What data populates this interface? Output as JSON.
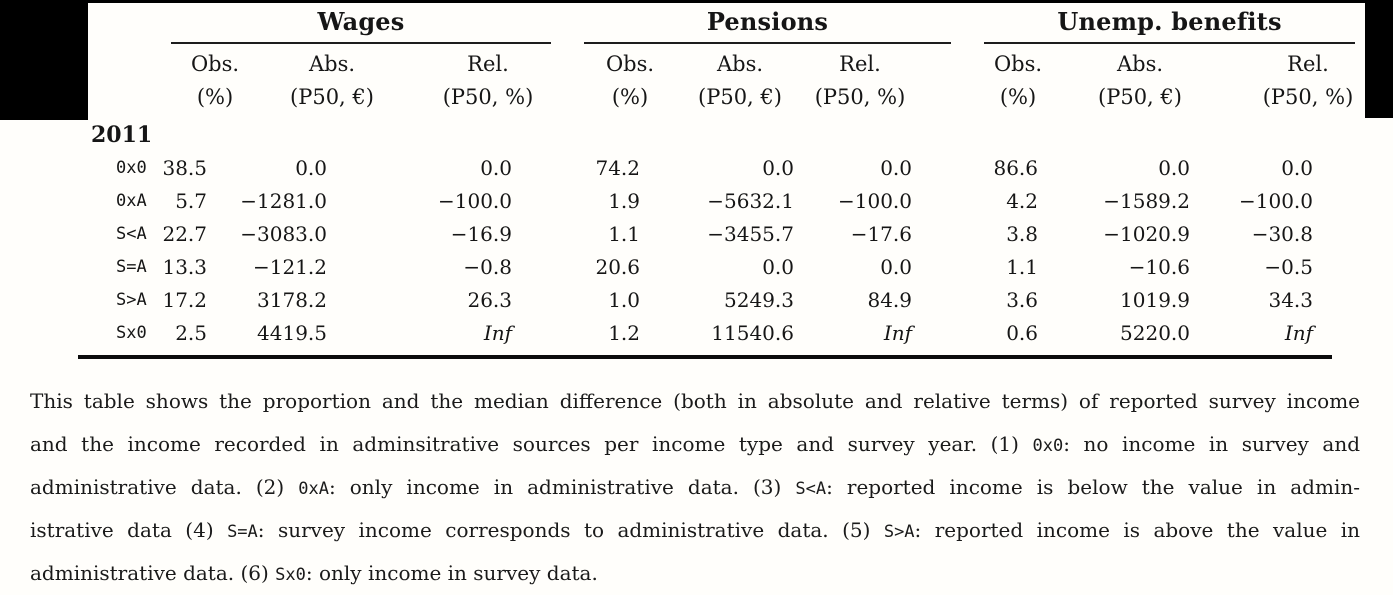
{
  "table": {
    "year_label": "2011",
    "groups": [
      {
        "label": "Wages"
      },
      {
        "label": "Pensions"
      },
      {
        "label": "Unemp. benefits"
      }
    ],
    "subheaders": [
      "Obs.",
      "Abs.",
      "Rel."
    ],
    "units": [
      "(%)",
      "(P50, €)",
      "(P50, %)"
    ],
    "rows": [
      {
        "label": "0x0",
        "wages": [
          "38.5",
          "0.0",
          "0.0"
        ],
        "pensions": [
          "74.2",
          "0.0",
          "0.0"
        ],
        "unemp": [
          "86.6",
          "0.0",
          "0.0"
        ]
      },
      {
        "label": "0xA",
        "wages": [
          "5.7",
          "−1281.0",
          "−100.0"
        ],
        "pensions": [
          "1.9",
          "−5632.1",
          "−100.0"
        ],
        "unemp": [
          "4.2",
          "−1589.2",
          "−100.0"
        ]
      },
      {
        "label": "S<A",
        "wages": [
          "22.7",
          "−3083.0",
          "−16.9"
        ],
        "pensions": [
          "1.1",
          "−3455.7",
          "−17.6"
        ],
        "unemp": [
          "3.8",
          "−1020.9",
          "−30.8"
        ]
      },
      {
        "label": "S=A",
        "wages": [
          "13.3",
          "−121.2",
          "−0.8"
        ],
        "pensions": [
          "20.6",
          "0.0",
          "0.0"
        ],
        "unemp": [
          "1.1",
          "−10.6",
          "−0.5"
        ]
      },
      {
        "label": "S>A",
        "wages": [
          "17.2",
          "3178.2",
          "26.3"
        ],
        "pensions": [
          "1.0",
          "5249.3",
          "84.9"
        ],
        "unemp": [
          "3.6",
          "1019.9",
          "34.3"
        ]
      },
      {
        "label": "Sx0",
        "wages": [
          "2.5",
          "4419.5",
          "Inf"
        ],
        "pensions": [
          "1.2",
          "11540.6",
          "Inf"
        ],
        "unemp": [
          "0.6",
          "5220.0",
          "Inf"
        ]
      }
    ]
  },
  "caption": {
    "lines": [
      [
        {
          "t": "This table shows the proportion and the median difference (both in absolute and relative terms) of reported survey income",
          "m": false
        }
      ],
      [
        {
          "t": "and the income recorded in adminsitrative sources per income type and survey year. (1) ",
          "m": false
        },
        {
          "t": "0x0",
          "m": true
        },
        {
          "t": ": no income in survey and",
          "m": false
        }
      ],
      [
        {
          "t": "administrative data. (2) ",
          "m": false
        },
        {
          "t": "0xA",
          "m": true
        },
        {
          "t": ": only income in administrative data. (3) ",
          "m": false
        },
        {
          "t": "S<A",
          "m": true
        },
        {
          "t": ": reported income is below the value in admin-",
          "m": false
        }
      ],
      [
        {
          "t": "istrative data (4) ",
          "m": false
        },
        {
          "t": "S=A",
          "m": true
        },
        {
          "t": ": survey income corresponds to administrative data. (5) ",
          "m": false
        },
        {
          "t": "S>A",
          "m": true
        },
        {
          "t": ": reported income is above the value in",
          "m": false
        }
      ],
      [
        {
          "t": "administrative data. (6) ",
          "m": false
        },
        {
          "t": "Sx0",
          "m": true
        },
        {
          "t": ": only income in survey data.",
          "m": false
        }
      ]
    ]
  }
}
